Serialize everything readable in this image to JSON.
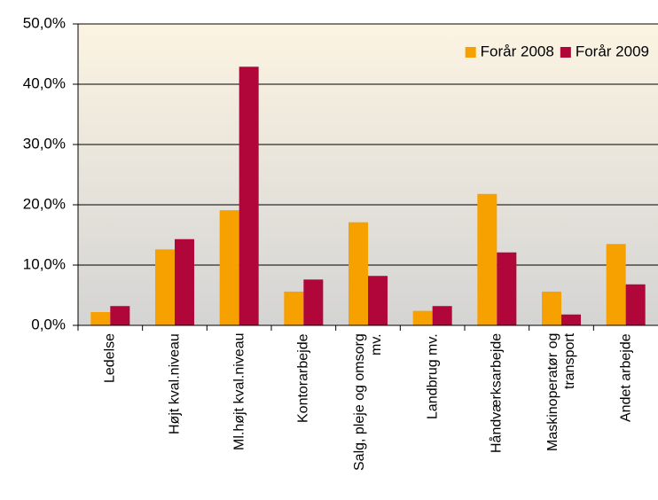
{
  "chart_data": {
    "type": "bar",
    "categories": [
      "Ledelse",
      "Højt kval.niveau",
      "Ml.højt kval.niveau",
      "Kontorarbejde",
      "Salg, pleje og omsorg mv.",
      "Landbrug mv.",
      "Håndværksarbejde",
      "Maskinoperatør og transport",
      "Andet arbejde"
    ],
    "series": [
      {
        "name": "Forår 2008",
        "color": "#f7a100",
        "values": [
          2.2,
          12.6,
          19.1,
          5.6,
          17.1,
          2.4,
          21.8,
          5.6,
          13.5
        ]
      },
      {
        "name": "Forår 2009",
        "color": "#b0063a",
        "values": [
          3.2,
          14.3,
          42.9,
          7.6,
          8.2,
          3.2,
          12.1,
          1.8,
          6.8
        ]
      }
    ],
    "ylim": [
      0,
      50
    ],
    "yticks": [
      {
        "value": 0,
        "label": "0,0%"
      },
      {
        "value": 10,
        "label": "10,0%"
      },
      {
        "value": 20,
        "label": "20,0%"
      },
      {
        "value": 30,
        "label": "30,0%"
      },
      {
        "value": 40,
        "label": "40,0%"
      },
      {
        "value": 50,
        "label": "50,0%"
      }
    ],
    "grid": true,
    "legend": "top-right"
  }
}
